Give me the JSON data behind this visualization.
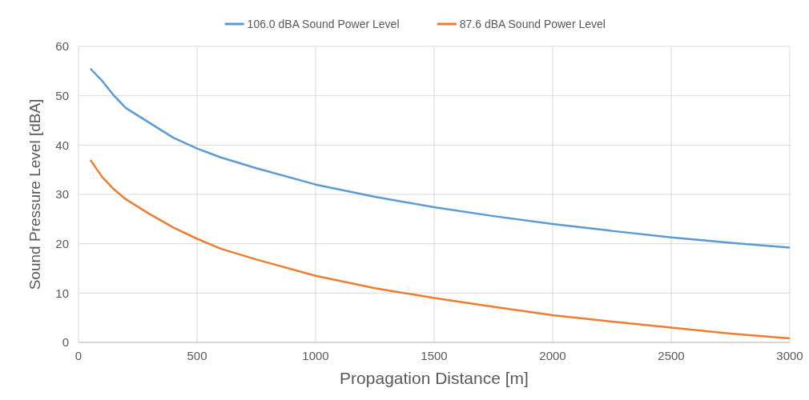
{
  "chart_data": {
    "type": "line",
    "xlabel": "Propagation Distance [m]",
    "ylabel": "Sound Pressure Level [dBA]",
    "x": [
      50,
      100,
      150,
      200,
      300,
      400,
      500,
      600,
      750,
      1000,
      1250,
      1500,
      1750,
      2000,
      2250,
      2500,
      2750,
      3000
    ],
    "series": [
      {
        "name": "106.0 dBA Sound Power Level",
        "color": "#5b9bd5",
        "values": [
          55.5,
          53,
          50,
          47.5,
          44.5,
          41.5,
          39.3,
          37.5,
          35.3,
          32,
          29.5,
          27.4,
          25.6,
          24,
          22.6,
          21.3,
          20.2,
          19.2
        ]
      },
      {
        "name": "87.6 dBA Sound Power Level",
        "color": "#ed7d31",
        "values": [
          37,
          33.5,
          31,
          29,
          26,
          23.3,
          21,
          19,
          16.8,
          13.5,
          11,
          9,
          7.2,
          5.5,
          4.2,
          3,
          1.8,
          0.8
        ]
      }
    ],
    "xlim": [
      0,
      3000
    ],
    "xticks": [
      0,
      500,
      1000,
      1500,
      2000,
      2500,
      3000
    ],
    "ylim": [
      0,
      60
    ],
    "yticks": [
      0,
      10,
      20,
      30,
      40,
      50,
      60
    ],
    "grid": true,
    "legend": "top",
    "marker": "none",
    "line_style": "solid"
  }
}
